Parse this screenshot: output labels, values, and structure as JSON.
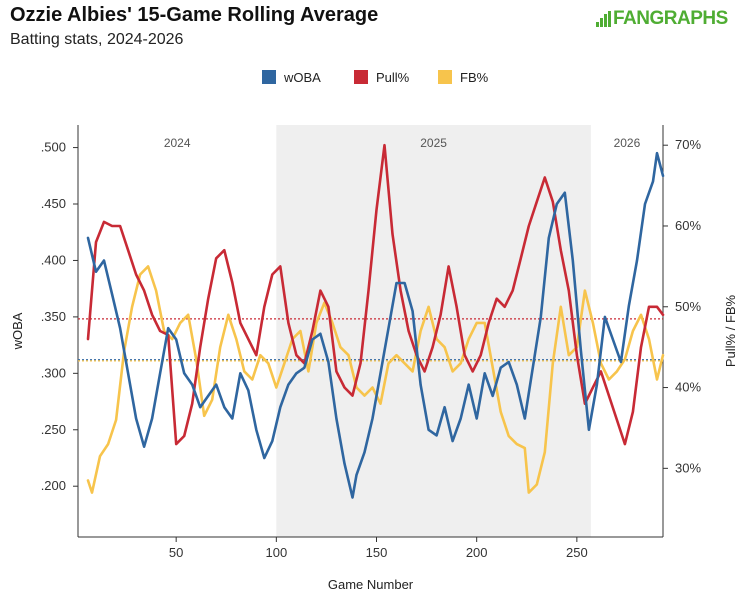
{
  "header": {
    "title": "Ozzie Albies' 15-Game Rolling Average",
    "subtitle": "Batting stats, 2024-2026",
    "logo_text": "FANGRAPHS"
  },
  "colors": {
    "woba": "#2f66a0",
    "pull": "#c82a35",
    "fb": "#f7c44c",
    "shade": "#efefef"
  },
  "chart_data": {
    "type": "line",
    "title": "Ozzie Albies' 15-Game Rolling Average",
    "subtitle": "Batting stats, 2024-2026",
    "xlabel": "Game Number",
    "ylabel_left": "wOBA",
    "ylabel_right": "Pull% / FB%",
    "xlim": [
      1,
      293
    ],
    "ylim_left": [
      0.155,
      0.52
    ],
    "ylim_right": [
      21.5,
      72.5
    ],
    "x_ticks": [
      "50",
      "100",
      "150",
      "200",
      "250"
    ],
    "y_ticks_left": [
      ".200",
      ".250",
      ".300",
      ".350",
      ".400",
      ".450",
      ".500"
    ],
    "y_ticks_right": [
      "30%",
      "40%",
      "50%",
      "60%",
      "70%"
    ],
    "legend": [
      "wOBA",
      "Pull%",
      "FB%"
    ],
    "legend_position": "top-center",
    "seasons": [
      {
        "label": "2024",
        "start": 1,
        "end": 100,
        "shaded": false
      },
      {
        "label": "2025",
        "start": 100,
        "end": 257,
        "shaded": true
      },
      {
        "label": "2026",
        "start": 257,
        "end": 293,
        "shaded": false
      }
    ],
    "reference_lines": {
      "woba_avg": 0.312,
      "pull_avg": 48.5,
      "fb_avg": 43.3
    },
    "series": [
      {
        "name": "wOBA",
        "axis": "left",
        "x": [
          6,
          10,
          14,
          18,
          22,
          26,
          30,
          34,
          38,
          42,
          46,
          50,
          54,
          58,
          62,
          66,
          70,
          74,
          78,
          82,
          86,
          90,
          94,
          98,
          102,
          106,
          110,
          114,
          118,
          122,
          126,
          130,
          134,
          138,
          140,
          144,
          148,
          152,
          156,
          160,
          164,
          168,
          172,
          176,
          180,
          184,
          188,
          192,
          196,
          200,
          204,
          208,
          212,
          216,
          220,
          224,
          228,
          232,
          236,
          240,
          244,
          248,
          252,
          256,
          260,
          264,
          268,
          272,
          276,
          280,
          284,
          288,
          290,
          293
        ],
        "y": [
          0.42,
          0.39,
          0.4,
          0.37,
          0.34,
          0.3,
          0.26,
          0.235,
          0.26,
          0.3,
          0.34,
          0.33,
          0.3,
          0.29,
          0.27,
          0.28,
          0.29,
          0.27,
          0.26,
          0.3,
          0.285,
          0.25,
          0.225,
          0.24,
          0.27,
          0.29,
          0.3,
          0.305,
          0.33,
          0.335,
          0.31,
          0.26,
          0.22,
          0.19,
          0.21,
          0.23,
          0.26,
          0.3,
          0.34,
          0.38,
          0.38,
          0.355,
          0.29,
          0.25,
          0.245,
          0.27,
          0.24,
          0.26,
          0.29,
          0.26,
          0.3,
          0.28,
          0.305,
          0.31,
          0.29,
          0.26,
          0.305,
          0.35,
          0.42,
          0.45,
          0.46,
          0.4,
          0.32,
          0.25,
          0.29,
          0.35,
          0.33,
          0.31,
          0.36,
          0.4,
          0.45,
          0.47,
          0.495,
          0.475
        ]
      },
      {
        "name": "Pull%",
        "axis": "left",
        "x": [
          6,
          10,
          14,
          18,
          22,
          26,
          30,
          34,
          38,
          42,
          46,
          50,
          54,
          58,
          62,
          66,
          70,
          74,
          78,
          82,
          86,
          90,
          94,
          98,
          102,
          106,
          110,
          114,
          118,
          122,
          126,
          130,
          134,
          138,
          142,
          146,
          150,
          154,
          158,
          162,
          166,
          170,
          174,
          178,
          182,
          186,
          190,
          194,
          198,
          202,
          206,
          210,
          214,
          218,
          222,
          226,
          230,
          234,
          238,
          242,
          246,
          250,
          254,
          258,
          262,
          266,
          270,
          274,
          278,
          282,
          286,
          290,
          293
        ],
        "y": [
          46.0,
          58.0,
          60.5,
          60.0,
          60.0,
          57.0,
          54.0,
          52.0,
          49.0,
          47.0,
          46.5,
          33.0,
          34.0,
          38.0,
          45.0,
          51.0,
          56.0,
          57.0,
          53.0,
          48.0,
          46.0,
          44.0,
          50.0,
          54.0,
          55.0,
          48.0,
          44.0,
          43.0,
          47.0,
          52.0,
          50.0,
          42.0,
          40.0,
          39.0,
          43.0,
          52.0,
          62.0,
          70.0,
          59.0,
          52.0,
          47.0,
          44.0,
          42.0,
          45.0,
          49.0,
          55.0,
          50.0,
          44.0,
          42.0,
          44.0,
          48.0,
          51.0,
          50.0,
          52.0,
          56.0,
          60.0,
          63.0,
          66.0,
          63.0,
          57.0,
          52.0,
          44.0,
          38.0,
          40.0,
          42.0,
          39.0,
          36.0,
          33.0,
          37.0,
          45.0,
          50.0,
          50.0,
          49.0
        ]
      },
      {
        "name": "FB%",
        "axis": "left",
        "x": [
          6,
          8,
          12,
          16,
          20,
          24,
          28,
          32,
          36,
          40,
          44,
          48,
          52,
          56,
          60,
          64,
          68,
          72,
          76,
          80,
          84,
          88,
          92,
          96,
          100,
          104,
          108,
          112,
          116,
          120,
          124,
          128,
          132,
          136,
          140,
          144,
          148,
          152,
          156,
          160,
          164,
          168,
          172,
          176,
          180,
          184,
          188,
          192,
          196,
          200,
          204,
          208,
          212,
          216,
          220,
          224,
          226,
          230,
          234,
          238,
          242,
          246,
          250,
          254,
          258,
          262,
          266,
          270,
          274,
          278,
          282,
          286,
          290,
          293
        ],
        "y": [
          28.5,
          27.0,
          31.5,
          33.0,
          36.0,
          44.5,
          50.0,
          54.0,
          55.0,
          52.0,
          47.0,
          46.0,
          48.0,
          49.0,
          43.5,
          36.5,
          38.5,
          45.0,
          49.0,
          46.0,
          42.0,
          41.0,
          44.0,
          43.0,
          40.0,
          43.0,
          46.0,
          47.0,
          42.0,
          48.0,
          50.5,
          48.0,
          45.0,
          44.0,
          40.0,
          39.0,
          40.0,
          38.0,
          43.0,
          44.0,
          43.0,
          42.0,
          47.0,
          50.0,
          46.0,
          45.0,
          42.0,
          43.0,
          46.0,
          48.0,
          48.0,
          42.5,
          37.0,
          34.0,
          33.0,
          32.5,
          27.0,
          28.0,
          32.0,
          43.0,
          50.0,
          44.0,
          45.0,
          52.0,
          48.0,
          43.0,
          41.0,
          42.0,
          43.5,
          47.0,
          49.0,
          46.0,
          41.0,
          44.0
        ]
      }
    ]
  }
}
